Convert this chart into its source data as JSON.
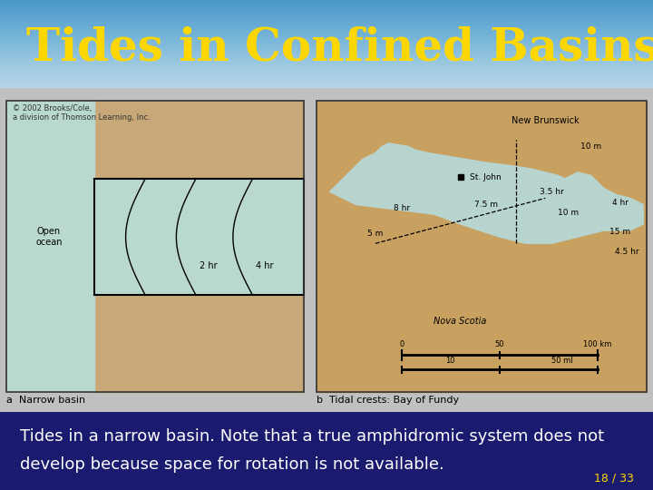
{
  "title": "Tides in Confined Basins",
  "title_color": "#FFD700",
  "title_fontsize": 36,
  "header_color": "#3344BB",
  "bg_color": "#C0C0C0",
  "footer_bg_color": "#1A1A6E",
  "footer_text_line1": "Tides in a narrow basin. Note that a true amphidromic system does not",
  "footer_text_line2": "develop because space for rotation is not available.",
  "footer_text_color": "#FFFFFF",
  "footer_fontsize": 13,
  "page_number": "18 / 33",
  "page_number_color": "#FFD700",
  "caption_left": "a  Narrow basin",
  "caption_right": "b  Tidal crests: Bay of Fundy",
  "caption_color": "#000000",
  "caption_fontsize": 8,
  "left_panel_bg": "#B8D8D0",
  "land_color": "#C8A878",
  "water_color": "#B8D8D0",
  "right_panel_land_color": "#C8A060",
  "open_ocean_label": "Open\nocean",
  "label_2hr": "2 hr",
  "label_4hr": "4 hr",
  "copyright_text": "© 2002 Brooks/Cole,\na division of Thomson Learning, Inc.",
  "copyright_fontsize": 6
}
